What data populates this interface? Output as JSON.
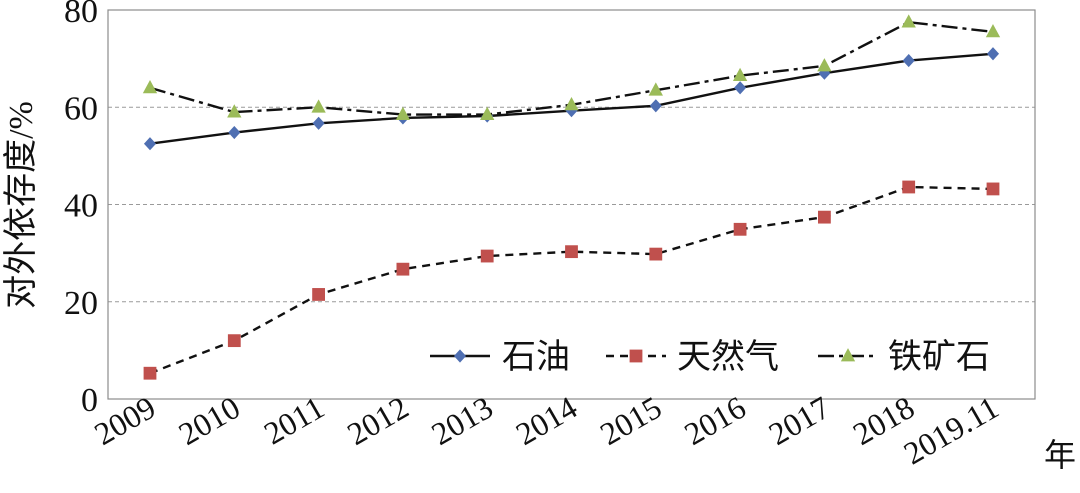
{
  "chart_data": {
    "type": "line",
    "title": "",
    "xlabel": "年",
    "ylabel": "对外依存度/%",
    "ylim": [
      0,
      80
    ],
    "yticks": [
      0,
      20,
      40,
      60,
      80
    ],
    "categories": [
      "2009",
      "2010",
      "2011",
      "2012",
      "2013",
      "2014",
      "2015",
      "2016",
      "2017",
      "2018",
      "2019.11"
    ],
    "grid": "horizontal dashed",
    "legend_position": "bottom-right",
    "series": [
      {
        "name": "石油",
        "color": "#4F6FB2",
        "marker": "diamond",
        "line_style": "solid",
        "values": [
          52.5,
          54.8,
          56.7,
          57.8,
          58.2,
          59.3,
          60.3,
          64.0,
          67.0,
          69.6,
          71.0
        ]
      },
      {
        "name": "天然气",
        "color": "#C0504D",
        "marker": "square",
        "line_style": "dashed",
        "values": [
          5.3,
          12.0,
          21.5,
          26.7,
          29.4,
          30.3,
          29.8,
          34.9,
          37.4,
          43.6,
          43.2
        ]
      },
      {
        "name": "铁矿石",
        "color": "#9BBB59",
        "marker": "triangle",
        "line_style": "dash-dot",
        "values": [
          64.0,
          59.0,
          60.0,
          58.5,
          58.5,
          60.5,
          63.5,
          66.5,
          68.5,
          77.5,
          75.5
        ]
      }
    ]
  }
}
